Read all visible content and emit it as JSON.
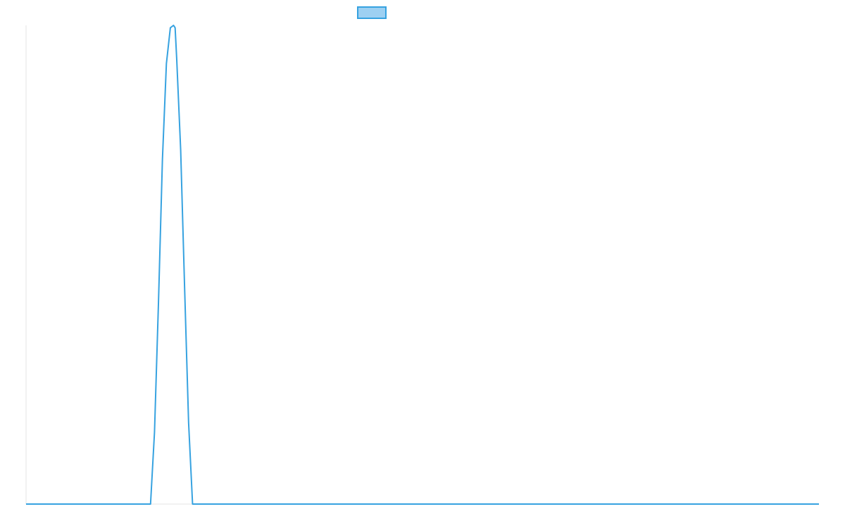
{
  "chart_data": {
    "type": "line",
    "title": "",
    "xlabel": "",
    "ylabel": "",
    "legend": {
      "placement": "top-center",
      "entries": [
        {
          "label": "",
          "fill": "#9dd0f2",
          "stroke": "#36a2e0"
        }
      ]
    },
    "grid": false,
    "xlim": [
      0,
      1
    ],
    "ylim": [
      0,
      1
    ],
    "series": [
      {
        "color": "#36a2e0",
        "shape": "narrow-peak",
        "x": [
          0,
          0.157,
          0.162,
          0.167,
          0.172,
          0.177,
          0.182,
          0.186,
          0.188,
          0.19,
          0.195,
          0.2,
          0.205,
          0.21,
          0.215,
          0.2,
          1
        ],
        "y": [
          0,
          0,
          0.15,
          0.42,
          0.72,
          0.92,
          0.995,
          1,
          0.995,
          0.93,
          0.74,
          0.45,
          0.17,
          0,
          0,
          0,
          0
        ]
      }
    ]
  }
}
